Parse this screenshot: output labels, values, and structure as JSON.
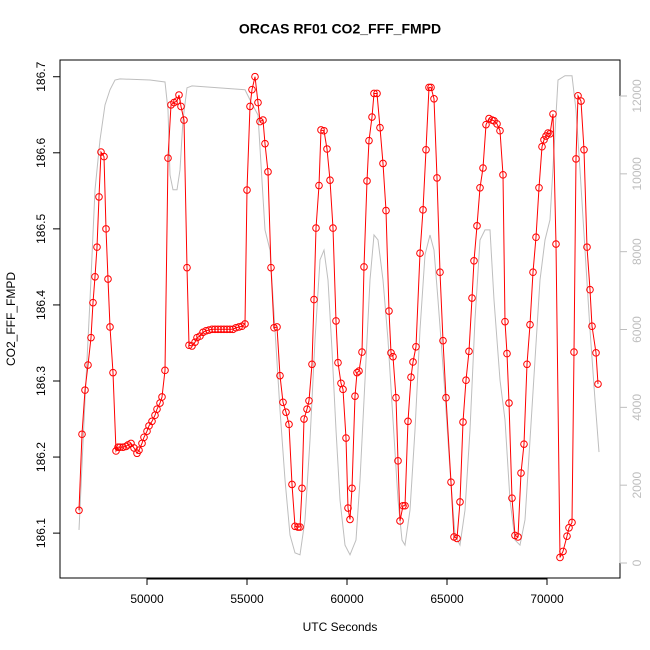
{
  "chart_data": {
    "type": "line",
    "title": "ORCAS RF01 CO2_FFF_FMPD",
    "x_label": "UTC Seconds",
    "y_label": "CO2_FFF_FMPD",
    "xlim": [
      45650,
      73650
    ],
    "xticks": [
      50000,
      55000,
      60000,
      65000,
      70000
    ],
    "ylim": [
      186.041,
      186.722
    ],
    "yticks": [
      186.1,
      186.2,
      186.3,
      186.4,
      186.5,
      186.6,
      186.7
    ],
    "y2lim": [
      -385,
      12925
    ],
    "y2ticks": [
      0,
      2000,
      4000,
      6000,
      8000,
      10000,
      12000
    ],
    "series": [
      {
        "color": "#bebebe",
        "axis": "y2",
        "x": [
          46600,
          46900,
          47150,
          47400,
          47650,
          47900,
          48150,
          48400,
          48650,
          50150,
          50900,
          51050,
          51150,
          51300,
          51500,
          51650,
          51800,
          52000,
          52250,
          54900,
          55150,
          55550,
          55900,
          56150,
          56400,
          56650,
          56900,
          57150,
          57400,
          57650,
          57900,
          58150,
          58400,
          58650,
          58850,
          59050,
          59250,
          59450,
          59650,
          59900,
          60150,
          60450,
          60650,
          60900,
          61150,
          61350,
          61550,
          61800,
          62050,
          62300,
          62550,
          62750,
          62900,
          63150,
          63400,
          63650,
          63900,
          64150,
          64350,
          64550,
          64850,
          65150,
          65400,
          65650,
          65900,
          66150,
          66400,
          66650,
          66900,
          67150,
          67350,
          67650,
          67900,
          68150,
          68400,
          68650,
          68900,
          69150,
          69400,
          69650,
          69900,
          70150,
          70350,
          70550,
          70900,
          71250,
          71450,
          71650,
          71900,
          72150,
          72400,
          72600
        ],
        "values": [
          850,
          4190,
          6760,
          9590,
          10870,
          11770,
          12160,
          12410,
          12440,
          12410,
          12360,
          11640,
          9970,
          9590,
          9590,
          10100,
          11390,
          12210,
          12260,
          12160,
          11900,
          11510,
          8560,
          8040,
          5990,
          3930,
          2140,
          720,
          260,
          210,
          1110,
          3160,
          5730,
          7790,
          8040,
          7270,
          5470,
          3420,
          1620,
          460,
          210,
          590,
          2130,
          4700,
          7270,
          8430,
          8300,
          7270,
          5730,
          3680,
          1620,
          590,
          460,
          1360,
          3420,
          5990,
          7920,
          8430,
          8040,
          6760,
          4700,
          2390,
          720,
          460,
          1360,
          3420,
          6250,
          8300,
          8560,
          8560,
          6760,
          4700,
          3680,
          1620,
          590,
          460,
          1110,
          3160,
          5220,
          7270,
          8300,
          8820,
          10610,
          12410,
          12520,
          12520,
          11640,
          10100,
          8040,
          5990,
          4190,
          2850
        ]
      },
      {
        "color": "#ff0000",
        "marker": "circle",
        "x": [
          46600,
          46750,
          46900,
          47050,
          47200,
          47300,
          47400,
          47500,
          47600,
          47700,
          47850,
          47950,
          48050,
          48150,
          48300,
          48450,
          48550,
          48650,
          48800,
          48950,
          49050,
          49200,
          49350,
          49500,
          49600,
          49750,
          49850,
          50000,
          50100,
          50250,
          50400,
          50500,
          50650,
          50750,
          50900,
          51050,
          51200,
          51350,
          51500,
          51600,
          51700,
          51850,
          52000,
          52100,
          52250,
          52400,
          52500,
          52650,
          52800,
          52950,
          53100,
          53250,
          53400,
          53550,
          53700,
          53850,
          54000,
          54150,
          54300,
          54450,
          54600,
          54750,
          54900,
          55000,
          55150,
          55250,
          55400,
          55550,
          55650,
          55800,
          55900,
          56050,
          56200,
          56350,
          56500,
          56650,
          56800,
          56950,
          57100,
          57250,
          57400,
          57550,
          57650,
          57750,
          57850,
          58000,
          58100,
          58250,
          58350,
          58450,
          58600,
          58700,
          58850,
          59000,
          59150,
          59300,
          59450,
          59550,
          59700,
          59800,
          59950,
          60050,
          60150,
          60250,
          60400,
          60500,
          60600,
          60750,
          60850,
          61000,
          61100,
          61250,
          61350,
          61500,
          61650,
          61800,
          61950,
          62100,
          62200,
          62300,
          62450,
          62550,
          62650,
          62800,
          62900,
          63050,
          63200,
          63300,
          63450,
          63650,
          63800,
          63950,
          64100,
          64200,
          64350,
          64500,
          64650,
          64800,
          64950,
          65200,
          65350,
          65500,
          65650,
          65800,
          65950,
          66100,
          66250,
          66350,
          66500,
          66650,
          66800,
          66950,
          67100,
          67250,
          67350,
          67500,
          67650,
          67800,
          67900,
          68000,
          68100,
          68250,
          68400,
          68550,
          68700,
          68850,
          69000,
          69150,
          69300,
          69450,
          69600,
          69750,
          69850,
          69950,
          70050,
          70150,
          70300,
          70450,
          70650,
          70800,
          71000,
          71100,
          71250,
          71350,
          71450,
          71550,
          71700,
          71850,
          72000,
          72150,
          72250,
          72450,
          72550
        ],
        "values": [
          186.13,
          186.23,
          186.288,
          186.321,
          186.357,
          186.403,
          186.437,
          186.476,
          186.542,
          186.601,
          186.595,
          186.5,
          186.434,
          186.371,
          186.311,
          186.208,
          186.213,
          186.213,
          186.213,
          186.214,
          186.216,
          186.218,
          186.212,
          186.205,
          186.209,
          186.218,
          186.226,
          186.234,
          186.241,
          186.247,
          186.255,
          186.263,
          186.271,
          186.279,
          186.314,
          186.593,
          186.663,
          186.666,
          186.668,
          186.676,
          186.661,
          186.643,
          186.449,
          186.347,
          186.346,
          186.351,
          186.357,
          186.359,
          186.364,
          186.366,
          186.367,
          186.368,
          186.368,
          186.368,
          186.368,
          186.368,
          186.368,
          186.368,
          186.368,
          186.37,
          186.371,
          186.372,
          186.375,
          186.551,
          186.661,
          186.683,
          186.7,
          186.666,
          186.641,
          186.643,
          186.612,
          186.575,
          186.449,
          186.37,
          186.371,
          186.307,
          186.272,
          186.259,
          186.243,
          186.164,
          186.109,
          186.108,
          186.108,
          186.159,
          186.25,
          186.263,
          186.274,
          186.322,
          186.407,
          186.501,
          186.557,
          186.63,
          186.629,
          186.605,
          186.564,
          186.501,
          186.379,
          186.324,
          186.297,
          186.289,
          186.225,
          186.133,
          186.118,
          186.159,
          186.28,
          186.311,
          186.313,
          186.338,
          186.45,
          186.563,
          186.616,
          186.647,
          186.678,
          186.678,
          186.633,
          186.586,
          186.524,
          186.392,
          186.337,
          186.332,
          186.278,
          186.195,
          186.116,
          186.136,
          186.136,
          186.247,
          186.305,
          186.325,
          186.345,
          186.468,
          186.525,
          186.604,
          186.686,
          186.686,
          186.671,
          186.567,
          186.443,
          186.353,
          186.278,
          186.167,
          186.095,
          186.093,
          186.141,
          186.246,
          186.301,
          186.339,
          186.409,
          186.458,
          186.504,
          186.554,
          186.58,
          186.637,
          186.645,
          186.643,
          186.642,
          186.638,
          186.629,
          186.571,
          186.378,
          186.336,
          186.271,
          186.146,
          186.097,
          186.095,
          186.179,
          186.217,
          186.322,
          186.374,
          186.443,
          186.489,
          186.554,
          186.608,
          186.617,
          186.622,
          186.626,
          186.625,
          186.651,
          186.48,
          186.068,
          186.076,
          186.096,
          186.107,
          186.114,
          186.338,
          186.592,
          186.675,
          186.668,
          186.604,
          186.476,
          186.42,
          186.372,
          186.337,
          186.296
        ]
      }
    ]
  }
}
